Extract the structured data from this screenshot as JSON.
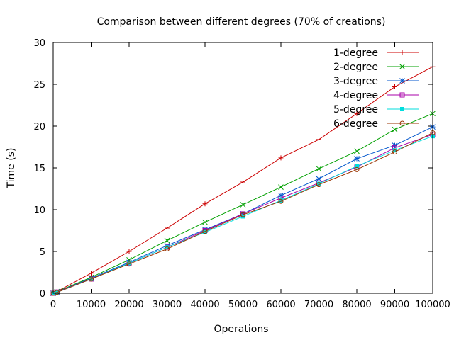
{
  "chart_data": {
    "type": "line",
    "title": "Comparison between different degrees (70% of creations)",
    "xlabel": "Operations",
    "ylabel": "Time (s)",
    "xlim": [
      0,
      100000
    ],
    "ylim": [
      0,
      30
    ],
    "xticks": [
      0,
      10000,
      20000,
      30000,
      40000,
      50000,
      60000,
      70000,
      80000,
      90000,
      100000
    ],
    "yticks": [
      0,
      5,
      10,
      15,
      20,
      25,
      30
    ],
    "x": [
      0,
      1000,
      10000,
      20000,
      30000,
      40000,
      50000,
      60000,
      70000,
      80000,
      90000,
      100000
    ],
    "legend_position": "top-right",
    "grid": false,
    "series": [
      {
        "name": "1-degree",
        "color": "#cc0000",
        "marker": "plus",
        "values": [
          0,
          0.2,
          2.4,
          5.0,
          7.8,
          10.7,
          13.3,
          16.2,
          18.4,
          21.5,
          24.7,
          27.1
        ]
      },
      {
        "name": "2-degree",
        "color": "#00a000",
        "marker": "cross",
        "values": [
          0,
          0.2,
          1.9,
          4.0,
          6.3,
          8.5,
          10.6,
          12.7,
          14.9,
          17.0,
          19.6,
          21.5
        ]
      },
      {
        "name": "3-degree",
        "color": "#0055cc",
        "marker": "star",
        "values": [
          0,
          0.15,
          1.8,
          3.7,
          5.7,
          7.6,
          9.5,
          11.7,
          13.7,
          16.1,
          17.7,
          19.9
        ]
      },
      {
        "name": "4-degree",
        "color": "#aa00aa",
        "marker": "square-open",
        "values": [
          0,
          0.15,
          1.7,
          3.6,
          5.5,
          7.5,
          9.5,
          11.4,
          13.2,
          15.1,
          17.4,
          19.0
        ]
      },
      {
        "name": "5-degree",
        "color": "#00dddd",
        "marker": "square-filled",
        "values": [
          0,
          0.1,
          1.7,
          3.6,
          5.5,
          7.3,
          9.2,
          11.1,
          13.1,
          15.2,
          17.1,
          18.8
        ]
      },
      {
        "name": "6-degree",
        "color": "#993300",
        "marker": "circle",
        "values": [
          0,
          0.1,
          1.7,
          3.5,
          5.3,
          7.4,
          9.4,
          11.0,
          13.0,
          14.8,
          16.9,
          19.2
        ]
      }
    ]
  }
}
